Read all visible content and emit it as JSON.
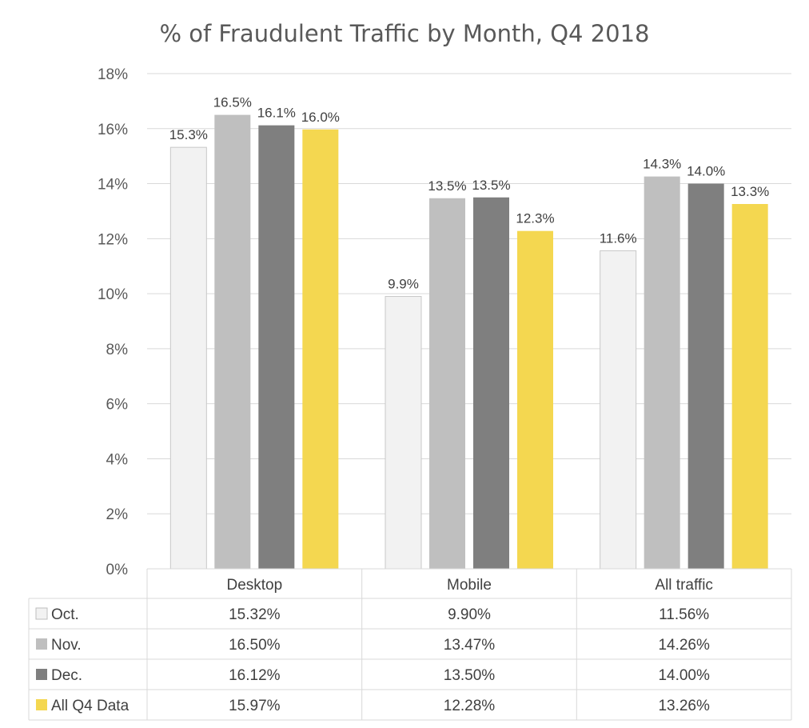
{
  "chart_data": {
    "type": "bar",
    "title": "% of Fraudulent Traffic by Month, Q4 2018",
    "xlabel": "",
    "ylabel": "",
    "categories": [
      "Desktop",
      "Mobile",
      "All traffic"
    ],
    "ylim": [
      0,
      18
    ],
    "yticks": [
      "0%",
      "2%",
      "4%",
      "6%",
      "8%",
      "10%",
      "12%",
      "14%",
      "16%",
      "18%"
    ],
    "grid": true,
    "legend_position": "data table",
    "series": [
      {
        "name": "Oct.",
        "color": "#f2f2f2",
        "values": [
          15.32,
          9.9,
          11.56
        ],
        "labels": [
          "15.3%",
          "9.9%",
          "11.6%"
        ],
        "table": [
          "15.32%",
          "9.90%",
          "11.56%"
        ]
      },
      {
        "name": "Nov.",
        "color": "#bfbfbf",
        "values": [
          16.5,
          13.47,
          14.26
        ],
        "labels": [
          "16.5%",
          "13.5%",
          "14.3%"
        ],
        "table": [
          "16.50%",
          "13.47%",
          "14.26%"
        ]
      },
      {
        "name": "Dec.",
        "color": "#7f7f7f",
        "values": [
          16.12,
          13.5,
          14.0
        ],
        "labels": [
          "16.1%",
          "13.5%",
          "14.0%"
        ],
        "table": [
          "16.12%",
          "13.50%",
          "14.00%"
        ]
      },
      {
        "name": "All Q4 Data",
        "color": "#f4d750",
        "values": [
          15.97,
          12.28,
          13.26
        ],
        "labels": [
          "16.0%",
          "12.3%",
          "13.3%"
        ],
        "table": [
          "15.97%",
          "12.28%",
          "13.26%"
        ]
      }
    ]
  }
}
